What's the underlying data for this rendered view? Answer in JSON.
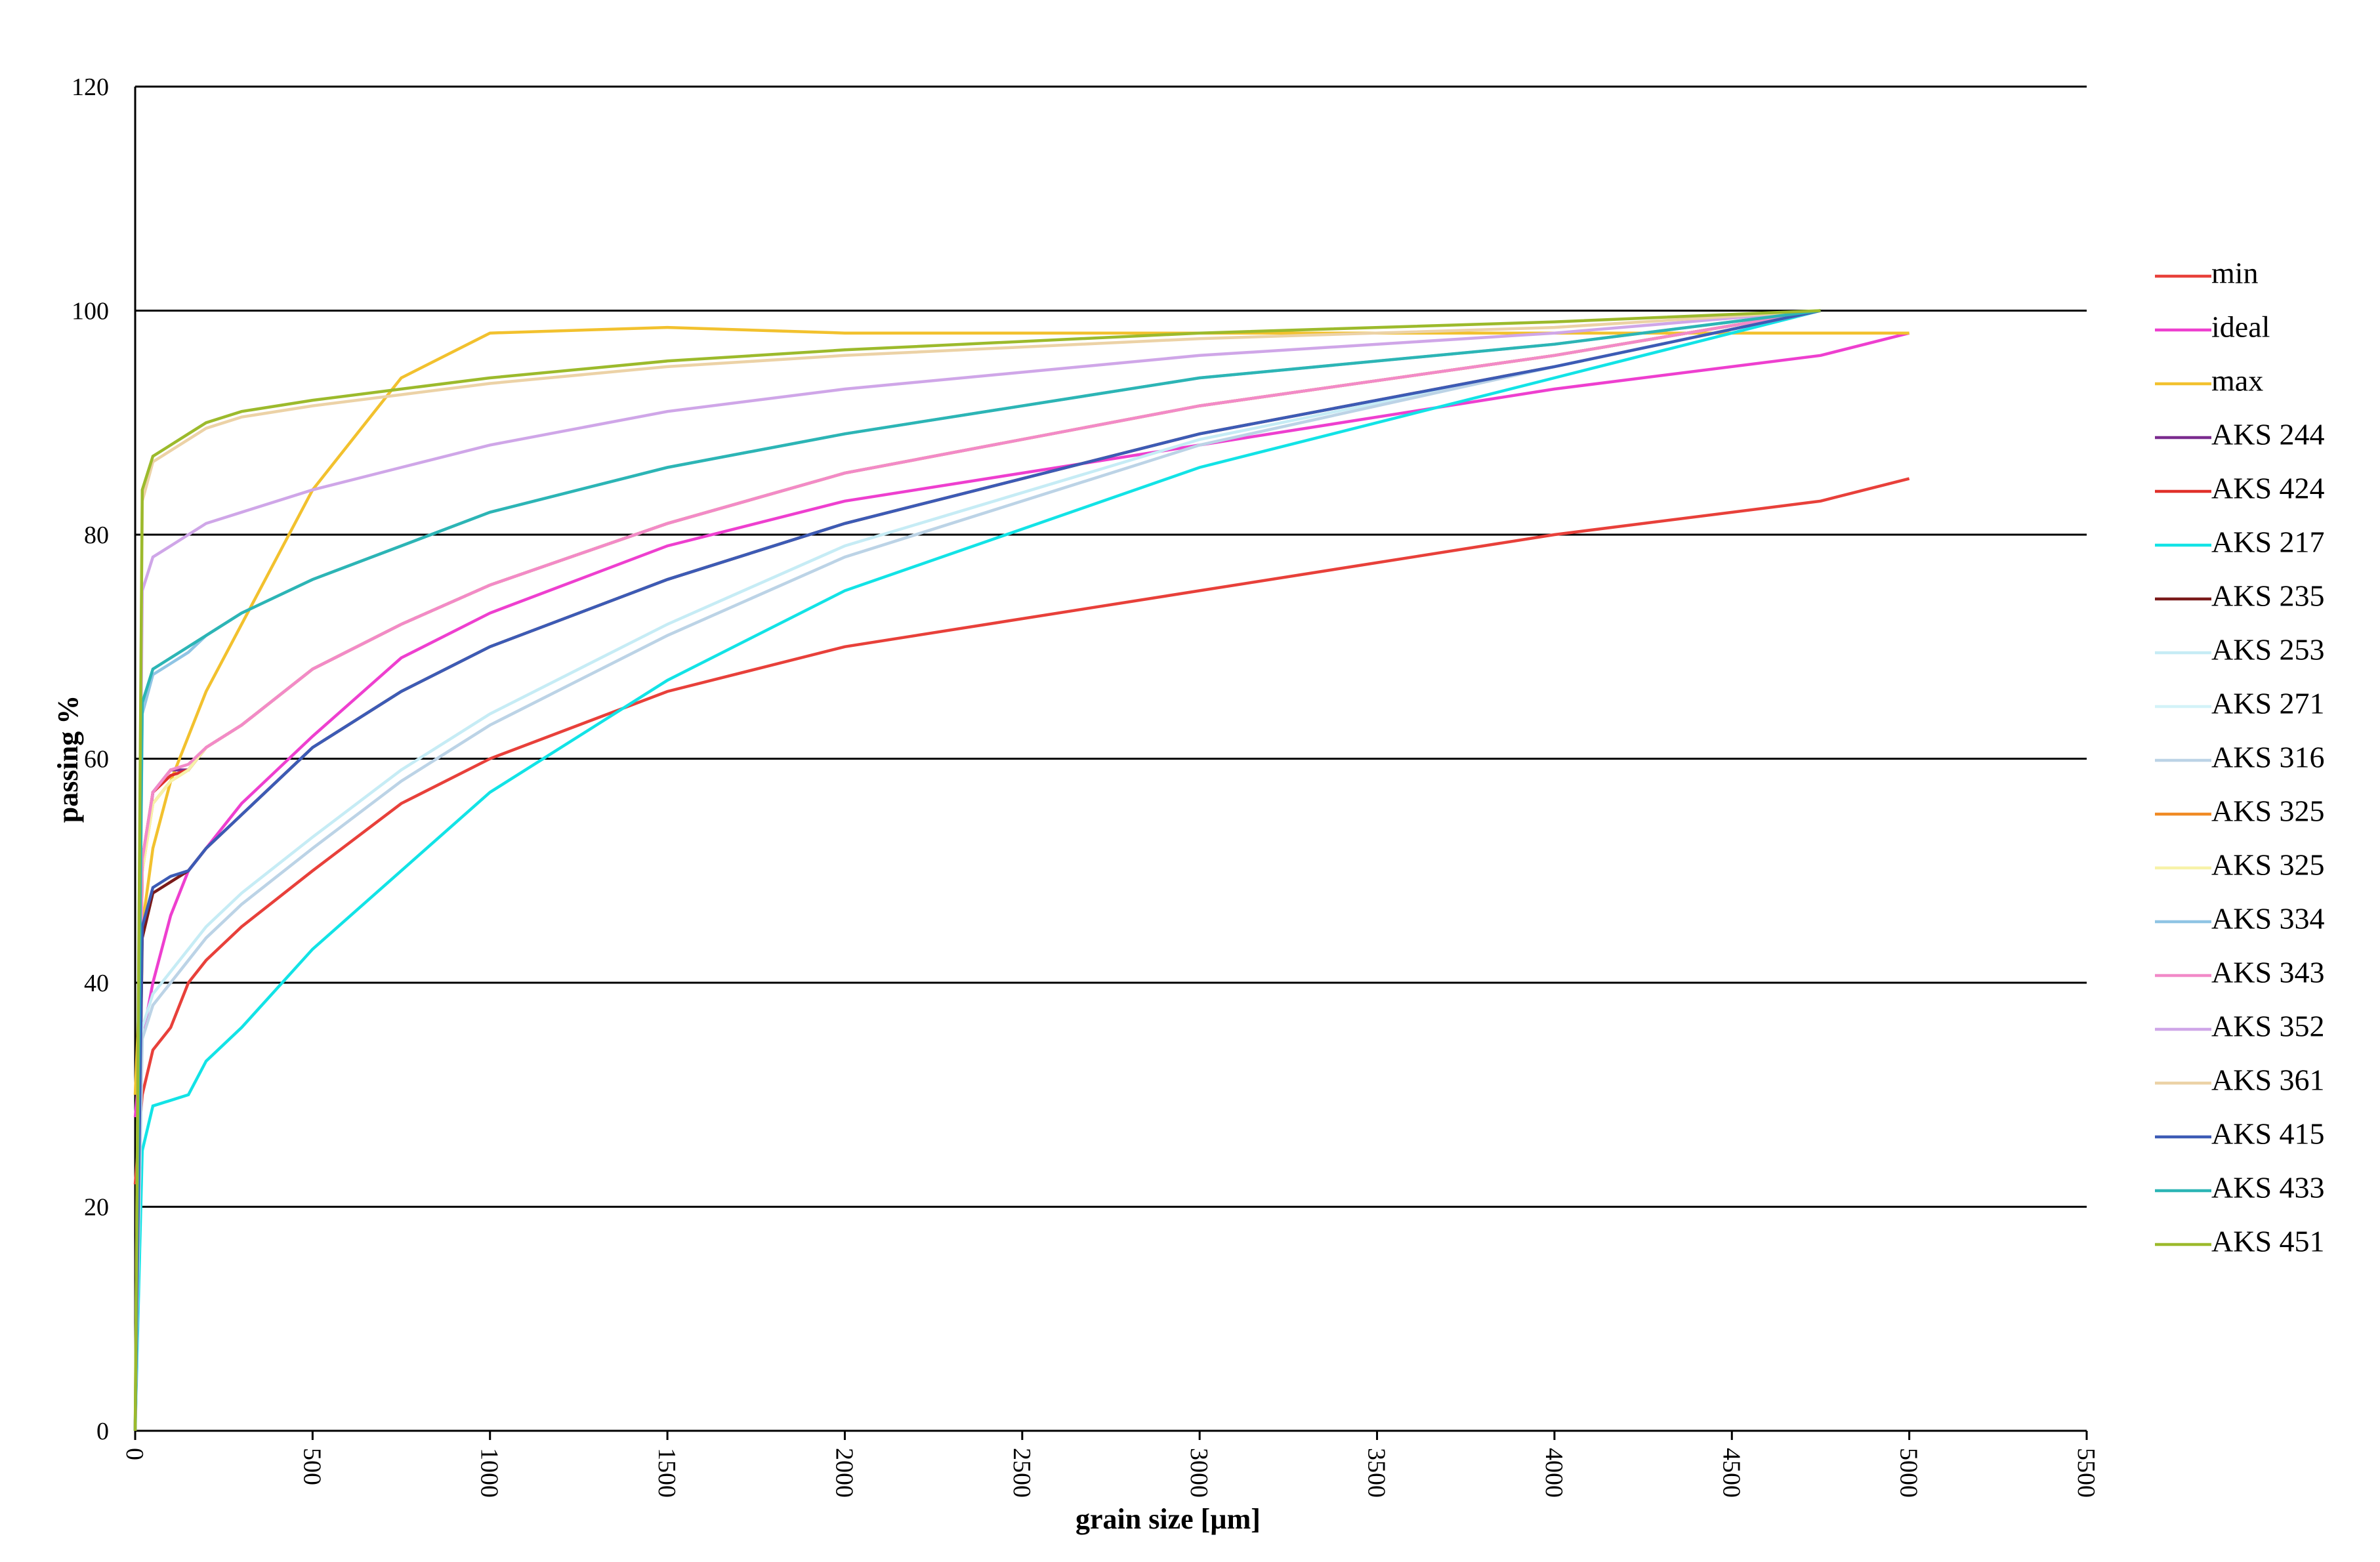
{
  "chart_data": {
    "type": "line",
    "x_label": "grain size [µm]",
    "y_label": "passing %",
    "x": [
      0,
      20,
      50,
      100,
      150,
      200,
      300,
      500,
      750,
      1000,
      1500,
      2000,
      3000,
      4000,
      4750,
      5000
    ],
    "xlim": [
      0,
      5500
    ],
    "xticks": [
      0,
      500,
      1000,
      1500,
      2000,
      2500,
      3000,
      3500,
      4000,
      4500,
      5000,
      5500
    ],
    "ylim": [
      0,
      120
    ],
    "yticks": [
      0,
      20,
      40,
      60,
      80,
      100,
      120
    ],
    "grid": true,
    "legend": "right",
    "series": [
      {
        "name": "min",
        "color": "#e8403a",
        "values": [
          22,
          30,
          34,
          36,
          40,
          42,
          45,
          50,
          56,
          60,
          66,
          70,
          75,
          80,
          83,
          85
        ]
      },
      {
        "name": "ideal",
        "color": "#ee3fcf",
        "values": [
          28,
          35,
          40,
          46,
          50,
          52,
          56,
          62,
          69,
          73,
          79,
          83,
          88,
          93,
          96,
          98
        ]
      },
      {
        "name": "max",
        "color": "#f2c12e",
        "values": [
          30,
          45,
          52,
          58,
          62,
          66,
          72,
          84,
          94,
          98,
          98.5,
          98,
          98,
          98,
          98,
          98
        ]
      },
      {
        "name": "AKS 244",
        "color": "#7b2c8f",
        "values": [
          0,
          50,
          57,
          59,
          59,
          61,
          63,
          68,
          72,
          75.5,
          81,
          85.5,
          91.5,
          96,
          100,
          null
        ]
      },
      {
        "name": "AKS 424",
        "color": "#e0302a",
        "values": [
          0,
          51,
          57,
          58.5,
          59,
          61,
          63,
          68,
          72,
          75.5,
          81,
          85.5,
          91.5,
          96,
          100,
          null
        ]
      },
      {
        "name": "AKS 217",
        "color": "#12e3e6",
        "values": [
          0,
          25,
          29,
          29.5,
          30,
          33,
          36,
          43,
          50,
          57,
          67,
          75,
          86,
          94,
          100,
          null
        ]
      },
      {
        "name": "AKS 235",
        "color": "#7a1a1a",
        "values": [
          0,
          44,
          48,
          49,
          50,
          52,
          55,
          61,
          66,
          70,
          76,
          81,
          89,
          95,
          100,
          null
        ]
      },
      {
        "name": "AKS 253",
        "color": "#c6ecf5",
        "values": [
          0,
          36,
          39,
          41,
          43,
          45,
          48,
          53,
          59,
          64,
          72,
          79,
          88.5,
          95,
          100,
          null
        ]
      },
      {
        "name": "AKS 271",
        "color": "#d3f3f8",
        "values": [
          0,
          35,
          38,
          40,
          42,
          44,
          47,
          52,
          58,
          63,
          71,
          78,
          88,
          95,
          100,
          null
        ]
      },
      {
        "name": "AKS 316",
        "color": "#bcd3e6",
        "values": [
          0,
          35,
          38,
          40,
          42,
          44,
          47,
          52,
          58,
          63,
          71,
          78,
          88,
          95,
          100,
          null
        ]
      },
      {
        "name": "AKS 325",
        "color": "#f08a24",
        "values": [
          0,
          50,
          56,
          58,
          59,
          61,
          63,
          68,
          72,
          75.5,
          81,
          85.5,
          91.5,
          96,
          100,
          null
        ]
      },
      {
        "name": "AKS 325",
        "color": "#f7f2a8",
        "values": [
          0,
          50,
          56,
          58,
          59,
          61,
          63,
          68,
          72,
          75.5,
          81,
          85.5,
          91.5,
          96,
          100,
          null
        ]
      },
      {
        "name": "AKS 334",
        "color": "#8fc4e4",
        "values": [
          0,
          64,
          67.5,
          68.5,
          69.5,
          71,
          73,
          76,
          79,
          82,
          86,
          89,
          94,
          97,
          100,
          null
        ]
      },
      {
        "name": "AKS 343",
        "color": "#f28ac8",
        "values": [
          0,
          51,
          57,
          59,
          59.5,
          61,
          63,
          68,
          72,
          75.5,
          81,
          85.5,
          91.5,
          96,
          100,
          null
        ]
      },
      {
        "name": "AKS 352",
        "color": "#cfa6e8",
        "values": [
          0,
          75,
          78,
          79,
          80,
          81,
          82,
          84,
          86,
          88,
          91,
          93,
          96,
          98,
          100,
          null
        ]
      },
      {
        "name": "AKS 361",
        "color": "#ecd2a6",
        "values": [
          0,
          83,
          86.5,
          87.5,
          88.5,
          89.5,
          90.5,
          91.5,
          92.5,
          93.5,
          95,
          96,
          97.5,
          98.5,
          100,
          null
        ]
      },
      {
        "name": "AKS 415",
        "color": "#3c5bb5",
        "values": [
          0,
          45,
          48.5,
          49.5,
          50,
          52,
          55,
          61,
          66,
          70,
          76,
          81,
          89,
          95,
          100,
          null
        ]
      },
      {
        "name": "AKS 433",
        "color": "#2cb5b5",
        "values": [
          0,
          65,
          68,
          69,
          70,
          71,
          73,
          76,
          79,
          82,
          86,
          89,
          94,
          97,
          100,
          null
        ]
      },
      {
        "name": "AKS 451",
        "color": "#9cba2c",
        "values": [
          0,
          84,
          87,
          88,
          89,
          90,
          91,
          92,
          93,
          94,
          95.5,
          96.5,
          98,
          99,
          100,
          null
        ]
      }
    ]
  }
}
